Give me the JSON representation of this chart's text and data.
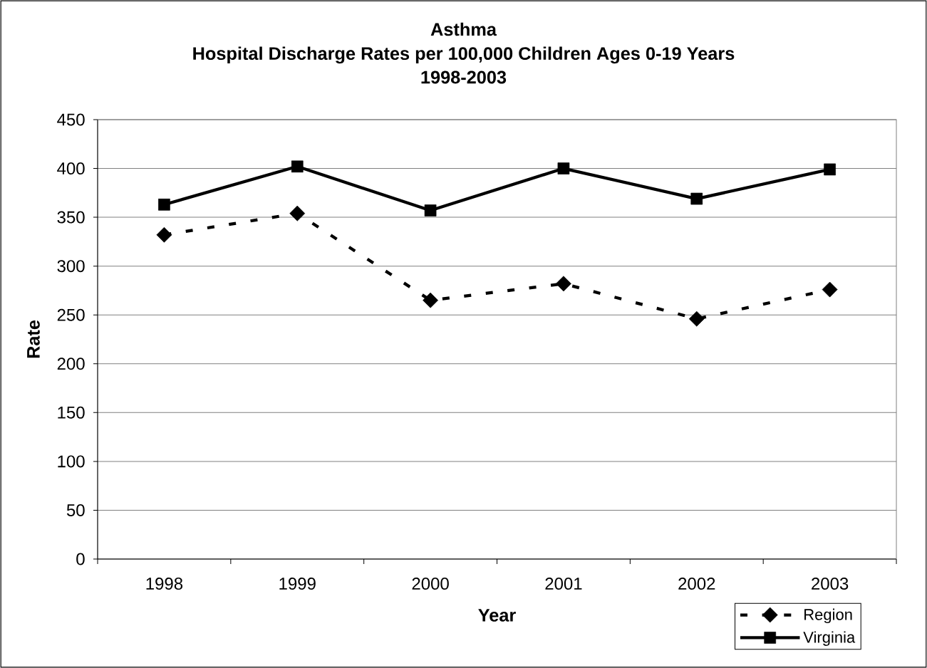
{
  "chart_data": {
    "type": "line",
    "title": "Asthma",
    "subtitle": "Hospital Discharge Rates per 100,000 Children Ages 0-19 Years 1998-2003",
    "xlabel": "Year",
    "ylabel": "Rate",
    "categories": [
      "1998",
      "1999",
      "2000",
      "2001",
      "2002",
      "2003"
    ],
    "series": [
      {
        "name": "Region",
        "color": "#000000",
        "values": [
          332,
          354,
          265,
          282,
          246,
          276
        ],
        "marker": "diamond",
        "line_style": "dashed"
      },
      {
        "name": "Virginia",
        "color": "#000000",
        "values": [
          363,
          402,
          357,
          400,
          369,
          399
        ],
        "marker": "square",
        "line_style": "solid"
      }
    ],
    "ylim": [
      0,
      450
    ],
    "yticks": [
      0,
      50,
      100,
      150,
      200,
      250,
      300,
      350,
      400,
      450
    ],
    "grid": "y",
    "legend": "bottom right"
  }
}
